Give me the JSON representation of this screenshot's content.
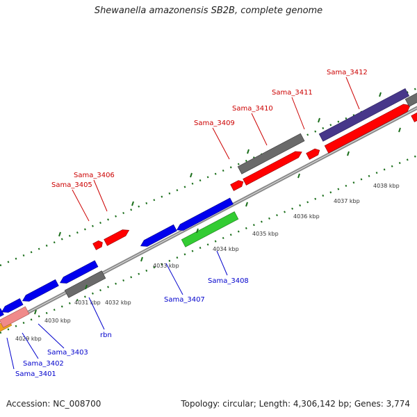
{
  "title": "Shewanella amazonensis SB2B, complete genome",
  "footer": {
    "accession_label": "Accession:",
    "accession": "NC_008700",
    "topology_label": "Topology:",
    "topology": "circular",
    "length_label": "Length:",
    "length": "4,306,142 bp",
    "genes_label": "Genes:",
    "genes": "3,774"
  },
  "colors": {
    "forward_gene": "#ff0000",
    "reverse_gene": "#0000ee",
    "rrna_gene": "#33cc33",
    "pseudo_gene": "#666666",
    "other_gene": "#47378a",
    "tick": "#1a6e1a",
    "backbone": "#8a8a8a"
  },
  "ticks": [
    {
      "label": "4029 kbp"
    },
    {
      "label": "4030 kbp"
    },
    {
      "label": "4031 kbp"
    },
    {
      "label": "4032 kbp"
    },
    {
      "label": "4033 kbp"
    },
    {
      "label": "4034 kbp"
    },
    {
      "label": "4035 kbp"
    },
    {
      "label": "4036 kbp"
    },
    {
      "label": "4037 kbp"
    },
    {
      "label": "4038 kbp"
    }
  ],
  "gene_labels_forward": [
    {
      "name": "Sama_3405"
    },
    {
      "name": "Sama_3406"
    },
    {
      "name": "Sama_3409"
    },
    {
      "name": "Sama_3410"
    },
    {
      "name": "Sama_3411"
    },
    {
      "name": "Sama_3412"
    }
  ],
  "gene_labels_reverse": [
    {
      "name": "Sama_3401"
    },
    {
      "name": "Sama_3402"
    },
    {
      "name": "Sama_3403"
    },
    {
      "name": "rbn"
    },
    {
      "name": "Sama_3407"
    },
    {
      "name": "Sama_3408"
    }
  ]
}
